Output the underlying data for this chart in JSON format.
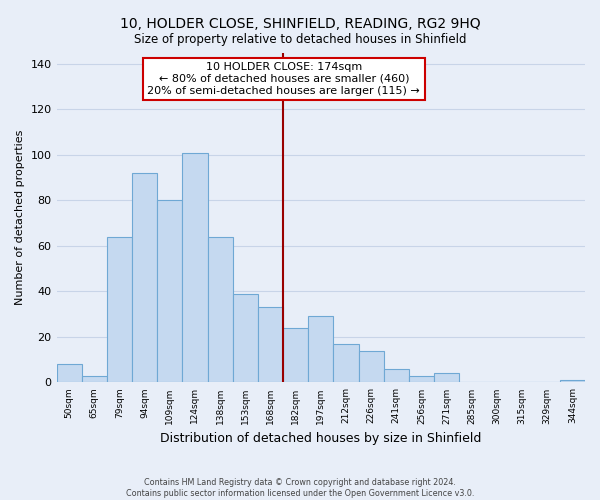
{
  "title": "10, HOLDER CLOSE, SHINFIELD, READING, RG2 9HQ",
  "subtitle": "Size of property relative to detached houses in Shinfield",
  "xlabel": "Distribution of detached houses by size in Shinfield",
  "ylabel": "Number of detached properties",
  "bar_labels": [
    "50sqm",
    "65sqm",
    "79sqm",
    "94sqm",
    "109sqm",
    "124sqm",
    "138sqm",
    "153sqm",
    "168sqm",
    "182sqm",
    "197sqm",
    "212sqm",
    "226sqm",
    "241sqm",
    "256sqm",
    "271sqm",
    "285sqm",
    "300sqm",
    "315sqm",
    "329sqm",
    "344sqm"
  ],
  "bar_values": [
    8,
    3,
    64,
    92,
    80,
    101,
    64,
    39,
    33,
    24,
    29,
    17,
    14,
    6,
    3,
    4,
    0,
    0,
    0,
    0,
    1
  ],
  "bar_color": "#c5d9f0",
  "bar_edge_color": "#6fa8d4",
  "vline_x": 8.5,
  "vline_color": "#990000",
  "annotation_title": "10 HOLDER CLOSE: 174sqm",
  "annotation_line1": "← 80% of detached houses are smaller (460)",
  "annotation_line2": "20% of semi-detached houses are larger (115) →",
  "annotation_box_color": "#ffffff",
  "annotation_box_edge": "#cc0000",
  "ylim": [
    0,
    145
  ],
  "yticks": [
    0,
    20,
    40,
    60,
    80,
    100,
    120,
    140
  ],
  "footer1": "Contains HM Land Registry data © Crown copyright and database right 2024.",
  "footer2": "Contains public sector information licensed under the Open Government Licence v3.0.",
  "bg_color": "#e8eef8",
  "grid_color": "#c8d4e8"
}
